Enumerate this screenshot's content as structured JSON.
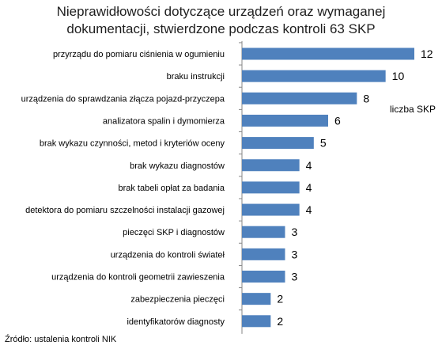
{
  "chart_data": {
    "type": "bar",
    "orientation": "horizontal",
    "title_lines": [
      "Nieprawidłowości dotyczące urządzeń oraz wymaganej",
      "dokumentacji, stwierdzone podczas kontroli  63 SKP"
    ],
    "categories": [
      "przyrządu do pomiaru ciśnienia w ogumieniu",
      "braku instrukcji",
      "urządzenia do sprawdzania złącza pojazd-przyczepa",
      "analizatora spalin i dymomierza",
      "brak wykazu czynności, metod i kryteriów oceny",
      "brak wykazu diagnostów",
      "brak tabeli opłat za badania",
      "detektora do pomiaru szczelności instalacji gazowej",
      "pieczęci SKP i diagnostów",
      "urządzenia do kontroli świateł",
      "urządzenia do kontroli geometrii zawieszenia",
      "zabezpieczenia pieczęci",
      "identyfikatorów diagnosty"
    ],
    "series": [
      {
        "name": "liczba SKP",
        "values": [
          12,
          10,
          8,
          6,
          5,
          4,
          4,
          4,
          3,
          3,
          3,
          2,
          2
        ]
      }
    ],
    "xlim": [
      0,
      12
    ],
    "grid": false,
    "bar_color": "#4f81bd",
    "legend_position": "right"
  },
  "source_note": "Źródło: ustalenia kontroli NIK"
}
